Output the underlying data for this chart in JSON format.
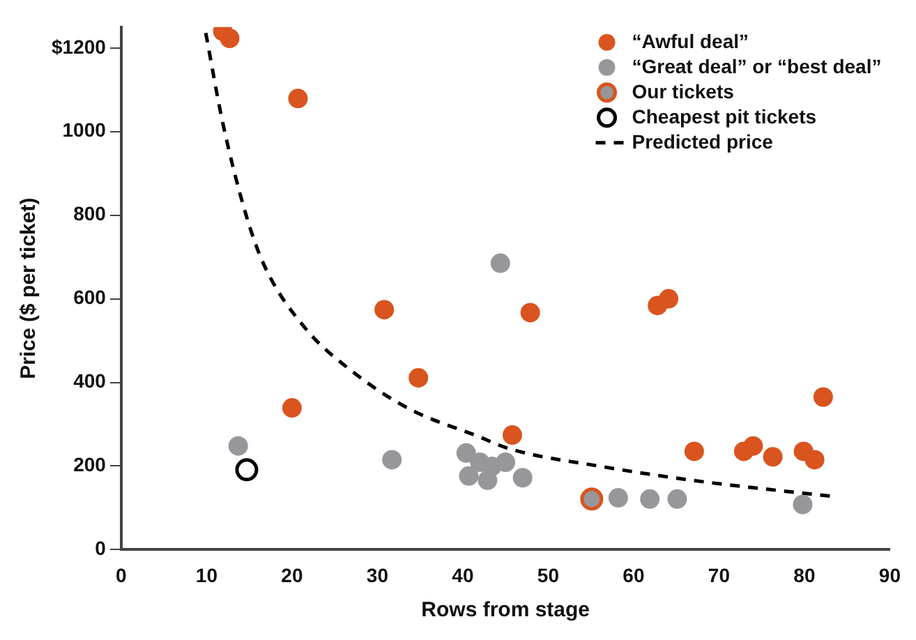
{
  "chart_data": {
    "type": "scatter",
    "xlabel": "Rows from stage",
    "ylabel": "Price ($ per ticket)",
    "xlim": [
      0,
      90
    ],
    "xticks": [
      0,
      10,
      20,
      30,
      40,
      50,
      60,
      70,
      80,
      90
    ],
    "ylim": [
      0,
      1250
    ],
    "yticks": [
      0,
      200,
      400,
      600,
      800,
      1000,
      {
        "value": 1200,
        "label": "$1200"
      }
    ],
    "grid": false,
    "legend": "top right",
    "marker": "circle",
    "series": [
      {
        "name": "“Awful deal”",
        "color": "#d9541e",
        "x": [
          11.9,
          12.7,
          20.7,
          20.0,
          30.8,
          34.8,
          47.9,
          45.8,
          62.8,
          64.1,
          67.1,
          72.9,
          74.0,
          76.3,
          79.9,
          81.2,
          82.2
        ],
        "values": [
          1240,
          1223,
          1079,
          339,
          574,
          411,
          567,
          274,
          584,
          600,
          235,
          235,
          248,
          222,
          235,
          215,
          365
        ]
      },
      {
        "name": "“Great deal” or “best deal”",
        "color": "#97979b",
        "x": [
          13.7,
          31.7,
          44.4,
          40.4,
          42.0,
          40.7,
          42.9,
          43.4,
          45.0,
          47.0,
          58.2,
          61.9,
          65.1,
          79.8
        ],
        "values": [
          248,
          215,
          685,
          231,
          209,
          176,
          166,
          199,
          209,
          172,
          124,
          121,
          121,
          108
        ]
      },
      {
        "name": "Our tickets",
        "color": "#d9541e",
        "x": [
          55.1
        ],
        "values": [
          121
        ]
      },
      {
        "name": "Cheapest pit tickets",
        "color": "#000000",
        "x": [
          14.7
        ],
        "values": [
          191
        ]
      },
      {
        "name": "Predicted price",
        "type": "line",
        "line_style": "dashed",
        "marker": "none",
        "color": "#000000",
        "x": [
          9.9,
          11.9,
          14.6,
          16.7,
          21.5,
          27.4,
          33.8,
          41.8,
          45.5,
          56.2,
          66.8,
          77.6,
          83.5
        ],
        "values": [
          1236,
          1020,
          802,
          682,
          531,
          421,
          336,
          271,
          241,
          199,
          166,
          140,
          127
        ]
      }
    ]
  }
}
